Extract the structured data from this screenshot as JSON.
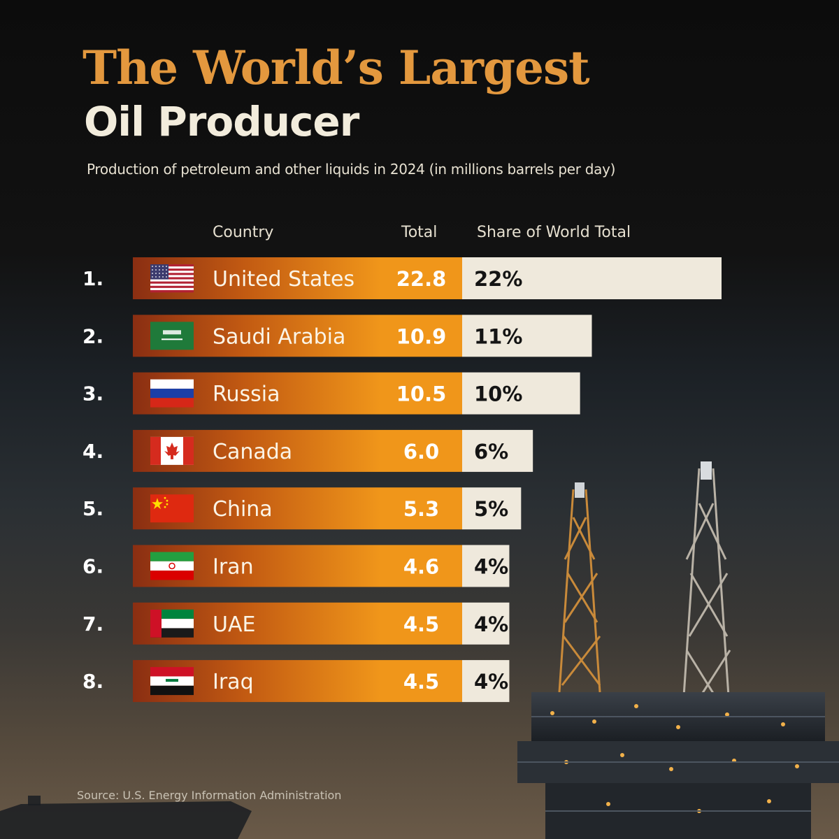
{
  "title_line1": "The World’s Largest",
  "title_line2": "Oil Producer",
  "subtitle": "Production of petroleum and other liquids in 2024 (in millions barrels per day)",
  "headers": {
    "country": "Country",
    "total": "Total",
    "share": "Share of World Total"
  },
  "source": "Source: U.S. Energy Information Administration",
  "colors": {
    "accent": "#e3983e",
    "bar_orange": "#f0961a",
    "bar_dark": "#8a2e12",
    "share_bar": "#efe9dc",
    "text_light": "#f2ecdc"
  },
  "chart_data": {
    "type": "bar",
    "categories": [
      "United States",
      "Saudi Arabia",
      "Russia",
      "Canada",
      "China",
      "Iran",
      "UAE",
      "Iraq"
    ],
    "ranks": [
      "1.",
      "2.",
      "3.",
      "4.",
      "5.",
      "6.",
      "7.",
      "8."
    ],
    "flags": [
      "us-flag-icon",
      "saudi-arabia-flag-icon",
      "russia-flag-icon",
      "canada-flag-icon",
      "china-flag-icon",
      "iran-flag-icon",
      "uae-flag-icon",
      "iraq-flag-icon"
    ],
    "totals": [
      "22.8",
      "10.9",
      "10.5",
      "6.0",
      "5.3",
      "4.6",
      "4.5",
      "4.5"
    ],
    "shares": [
      "22%",
      "11%",
      "10%",
      "6%",
      "5%",
      "4%",
      "4%",
      "4%"
    ],
    "share_values": [
      22,
      11,
      10,
      6,
      5,
      4,
      4,
      4
    ],
    "values": [
      22.8,
      10.9,
      10.5,
      6.0,
      5.3,
      4.6,
      4.5,
      4.5
    ]
  }
}
